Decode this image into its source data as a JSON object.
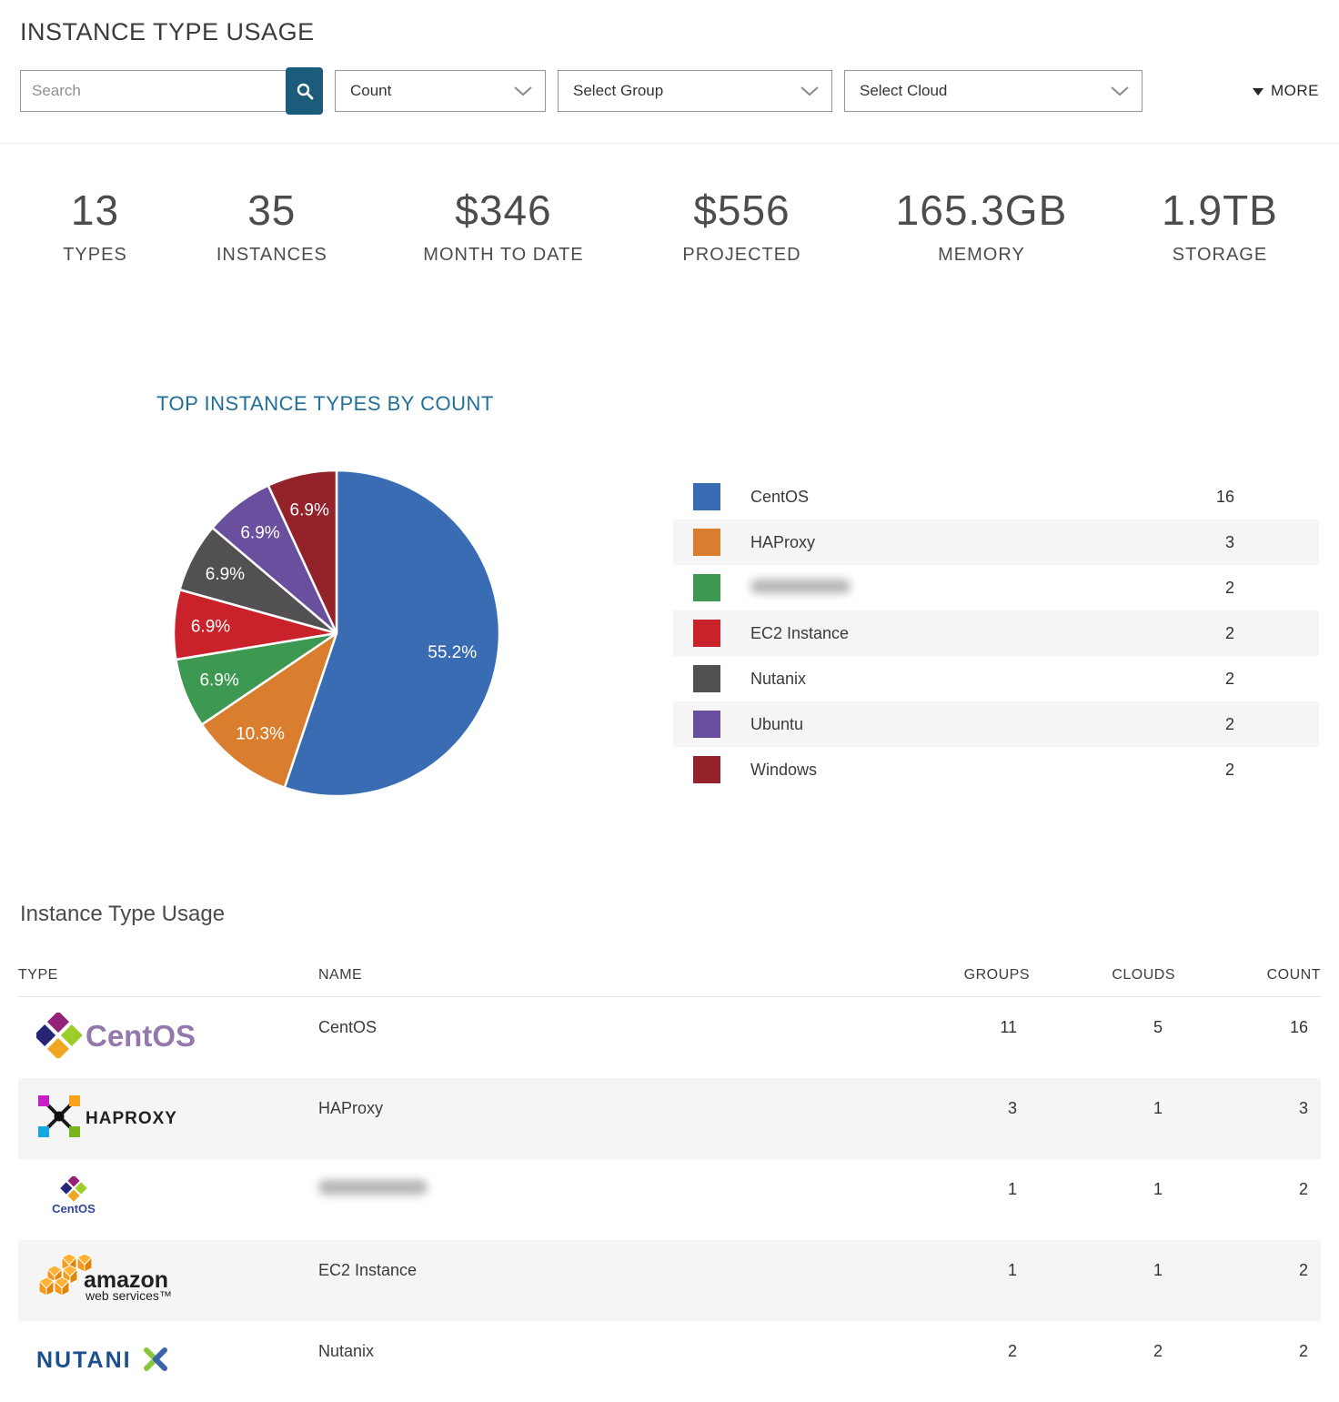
{
  "page": {
    "title": "INSTANCE TYPE USAGE"
  },
  "filters": {
    "search_placeholder": "Search",
    "search_icon": "search-icon",
    "metric_select": "Count",
    "group_select": "Select Group",
    "cloud_select": "Select Cloud",
    "dropdown_icon": "chevron-down-icon",
    "more_label": "MORE",
    "more_icon": "caret-down-icon"
  },
  "stats": [
    {
      "value": "13",
      "label": "TYPES"
    },
    {
      "value": "35",
      "label": "INSTANCES"
    },
    {
      "value": "$346",
      "label": "MONTH TO DATE"
    },
    {
      "value": "$556",
      "label": "PROJECTED"
    },
    {
      "value": "165.3GB",
      "label": "MEMORY"
    },
    {
      "value": "1.9TB",
      "label": "STORAGE"
    }
  ],
  "chart_section": {
    "title": "TOP INSTANCE TYPES BY COUNT"
  },
  "chart_data": {
    "type": "pie",
    "title": "TOP INSTANCE TYPES BY COUNT",
    "direction": "clockwise",
    "start_angle_deg": 0,
    "legend_position": "right",
    "data_labels": "percent-inside-white",
    "slices": [
      {
        "label": "CentOS",
        "value": 16,
        "percent": "55.2%",
        "color": "#3A6CB4",
        "redacted": false
      },
      {
        "label": "HAProxy",
        "value": 3,
        "percent": "10.3%",
        "color": "#D97E2F",
        "redacted": false
      },
      {
        "label": "",
        "value": 2,
        "percent": "6.9%",
        "color": "#3D9851",
        "redacted": true
      },
      {
        "label": "EC2 Instance",
        "value": 2,
        "percent": "6.9%",
        "color": "#C9222A",
        "redacted": false
      },
      {
        "label": "Nutanix",
        "value": 2,
        "percent": "6.9%",
        "color": "#525052",
        "redacted": false
      },
      {
        "label": "Ubuntu",
        "value": 2,
        "percent": "6.9%",
        "color": "#6A4F9E",
        "redacted": false
      },
      {
        "label": "Windows",
        "value": 2,
        "percent": "6.9%",
        "color": "#93222B",
        "redacted": false
      }
    ]
  },
  "table": {
    "title": "Instance Type Usage",
    "columns": [
      "TYPE",
      "NAME",
      "GROUPS",
      "CLOUDS",
      "COUNT"
    ],
    "rows": [
      {
        "logo": "centos",
        "name": "CentOS",
        "groups": "11",
        "clouds": "5",
        "count": "16",
        "redacted": false
      },
      {
        "logo": "haproxy",
        "name": "HAProxy",
        "groups": "3",
        "clouds": "1",
        "count": "3",
        "redacted": false
      },
      {
        "logo": "centos-small",
        "name": "",
        "groups": "1",
        "clouds": "1",
        "count": "2",
        "redacted": true
      },
      {
        "logo": "aws",
        "name": "EC2 Instance",
        "groups": "1",
        "clouds": "1",
        "count": "2",
        "redacted": false
      },
      {
        "logo": "nutanix",
        "name": "Nutanix",
        "groups": "2",
        "clouds": "2",
        "count": "2",
        "redacted": false
      }
    ]
  },
  "colors": {
    "accent_teal": "#1D5B7A",
    "chart_heading_blue": "#1F6F99",
    "row_stripe": "#F5F5F5",
    "title_gray": "#3B3B3B"
  }
}
